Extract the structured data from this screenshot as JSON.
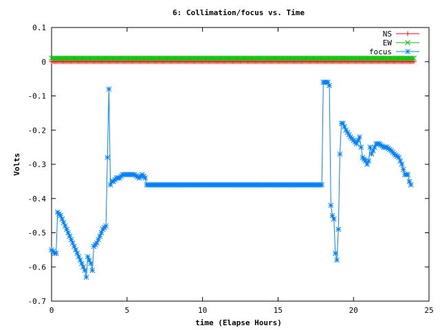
{
  "chart_data": {
    "type": "line",
    "title": "6: Collimation/focus vs. Time",
    "xlabel": "time (Elapse Hours)",
    "ylabel": "Volts",
    "xlim": [
      0,
      25
    ],
    "ylim": [
      -0.7,
      0.1
    ],
    "xticks": [
      0,
      5,
      10,
      15,
      20,
      25
    ],
    "yticks": [
      0.1,
      0,
      -0.1,
      -0.2,
      -0.3,
      -0.4,
      -0.5,
      -0.6,
      -0.7
    ],
    "grid": false,
    "legend": "top-right",
    "series": [
      {
        "name": "NS",
        "color": "#ff0000",
        "marker": "plus",
        "x": [
          0,
          24
        ],
        "y": [
          0.0,
          0.0
        ]
      },
      {
        "name": "EW",
        "color": "#00c000",
        "marker": "cross",
        "x": [
          0,
          24
        ],
        "y": [
          0.01,
          0.01
        ]
      },
      {
        "name": "focus",
        "color": "#0080ff",
        "marker": "star",
        "x": [
          0.0,
          0.2,
          0.3,
          0.4,
          0.6,
          0.8,
          1.0,
          1.2,
          1.4,
          1.6,
          1.8,
          2.0,
          2.2,
          2.3,
          2.4,
          2.6,
          2.7,
          2.8,
          3.0,
          3.2,
          3.4,
          3.6,
          3.8,
          3.9,
          4.0,
          4.1,
          4.3,
          4.5,
          4.7,
          4.9,
          5.2,
          5.5,
          5.8,
          6.0,
          6.2,
          6.3,
          17.9,
          18.0,
          18.1,
          18.2,
          18.3,
          18.4,
          18.5,
          18.6,
          18.7,
          18.8,
          18.9,
          19.0,
          19.1,
          19.2,
          19.3,
          19.5,
          19.8,
          20.0,
          20.2,
          20.4,
          20.6,
          20.8,
          20.9,
          21.0,
          21.1,
          21.2,
          21.3,
          21.5,
          21.7,
          22.0,
          22.2,
          22.5,
          22.7,
          23.0,
          23.2,
          23.4,
          23.6,
          23.7,
          23.8
        ],
        "y": [
          -0.55,
          -0.56,
          -0.56,
          -0.44,
          -0.45,
          -0.47,
          -0.49,
          -0.51,
          -0.53,
          -0.55,
          -0.57,
          -0.59,
          -0.61,
          -0.63,
          -0.57,
          -0.59,
          -0.61,
          -0.54,
          -0.53,
          -0.51,
          -0.49,
          -0.48,
          -0.08,
          -0.36,
          -0.35,
          -0.35,
          -0.34,
          -0.34,
          -0.33,
          -0.33,
          -0.33,
          -0.33,
          -0.34,
          -0.33,
          -0.34,
          -0.36,
          -0.36,
          -0.06,
          -0.06,
          -0.06,
          -0.06,
          -0.07,
          -0.42,
          -0.45,
          -0.46,
          -0.56,
          -0.58,
          -0.49,
          -0.27,
          -0.18,
          -0.18,
          -0.2,
          -0.22,
          -0.23,
          -0.24,
          -0.22,
          -0.28,
          -0.29,
          -0.3,
          -0.29,
          -0.25,
          -0.27,
          -0.26,
          -0.24,
          -0.24,
          -0.25,
          -0.25,
          -0.26,
          -0.27,
          -0.28,
          -0.3,
          -0.33,
          -0.33,
          -0.35,
          -0.36
        ]
      }
    ]
  }
}
